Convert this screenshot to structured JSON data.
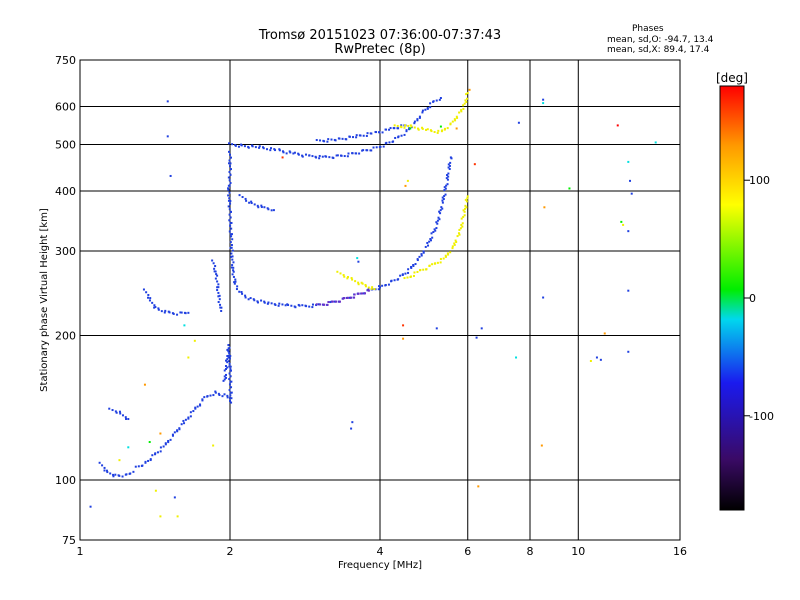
{
  "header": {
    "title_line1": "Tromsø 20151023 07:36:00-07:37:43",
    "title_line2": "RwPretec (8p)"
  },
  "stats": {
    "heading": "Phases",
    "o_line": "mean, sd,O: -94.7, 13.4",
    "x_line": "mean, sd,X: 89.4, 17.4"
  },
  "chart_data": {
    "type": "scatter",
    "xlabel": "Frequency [MHz]",
    "ylabel": "Stationary phase Virtual Height [km]",
    "x_scale": "log",
    "y_scale": "log",
    "xlim": [
      1,
      16
    ],
    "ylim": [
      75,
      750
    ],
    "x_ticks": [
      1,
      2,
      4,
      6,
      8,
      10,
      16
    ],
    "x_gridlines": [
      2,
      4,
      6,
      8,
      10
    ],
    "y_ticks": [
      75,
      100,
      200,
      300,
      400,
      500,
      600,
      750
    ],
    "y_gridlines": [
      100,
      200,
      300,
      400,
      500,
      600
    ],
    "grid": true,
    "colorbar": {
      "label": "[deg]",
      "range": [
        -180,
        180
      ],
      "ticks": [
        100,
        0,
        -100
      ],
      "stops": [
        "#000000",
        "#3a0a66",
        "#1a1aee",
        "#00d8ee",
        "#00ee00",
        "#ffff00",
        "#ff9900",
        "#ff0000"
      ]
    },
    "series": [
      {
        "shape": "trace",
        "color": "#2040e0",
        "points": [
          [
            2.0,
            500
          ],
          [
            2.1,
            497
          ],
          [
            2.3,
            493
          ],
          [
            2.5,
            486
          ],
          [
            2.7,
            478
          ],
          [
            2.9,
            472
          ],
          [
            3.1,
            470
          ],
          [
            3.3,
            472
          ],
          [
            3.5,
            477
          ],
          [
            3.7,
            484
          ],
          [
            3.9,
            490
          ],
          [
            4.1,
            500
          ],
          [
            4.3,
            513
          ],
          [
            4.5,
            530
          ],
          [
            4.7,
            555
          ],
          [
            4.9,
            585
          ],
          [
            5.1,
            610
          ],
          [
            5.3,
            625
          ]
        ]
      },
      {
        "shape": "trace",
        "color": "#2040e0",
        "points": [
          [
            3.0,
            508
          ],
          [
            3.3,
            512
          ],
          [
            3.6,
            520
          ],
          [
            3.9,
            528
          ],
          [
            4.2,
            538
          ],
          [
            4.5,
            548
          ]
        ]
      },
      {
        "shape": "trace",
        "color": "#2040e0",
        "points": [
          [
            2.0,
            480
          ],
          [
            2.0,
            430
          ],
          [
            1.99,
            400
          ],
          [
            2.0,
            360
          ],
          [
            2.01,
            320
          ],
          [
            2.02,
            290
          ],
          [
            2.03,
            270
          ],
          [
            2.05,
            255
          ],
          [
            2.1,
            245
          ],
          [
            2.2,
            238
          ],
          [
            2.4,
            233
          ],
          [
            2.6,
            231
          ],
          [
            2.8,
            230
          ],
          [
            3.0,
            231
          ],
          [
            3.2,
            234
          ],
          [
            3.4,
            238
          ],
          [
            3.6,
            243
          ],
          [
            3.8,
            248
          ],
          [
            4.0,
            252
          ]
        ]
      },
      {
        "shape": "trace",
        "color": "#6a30c8",
        "points": [
          [
            3.0,
            231
          ],
          [
            3.2,
            234
          ],
          [
            3.4,
            238
          ],
          [
            3.6,
            243
          ],
          [
            3.8,
            248
          ]
        ]
      },
      {
        "shape": "trace",
        "color": "#2040e0",
        "points": [
          [
            4.0,
            252
          ],
          [
            4.2,
            258
          ],
          [
            4.4,
            265
          ],
          [
            4.6,
            275
          ],
          [
            4.8,
            290
          ],
          [
            5.0,
            310
          ],
          [
            5.2,
            340
          ],
          [
            5.35,
            380
          ],
          [
            5.45,
            420
          ],
          [
            5.55,
            470
          ]
        ]
      },
      {
        "shape": "trace",
        "color": "#f0f000",
        "points": [
          [
            4.5,
            262
          ],
          [
            4.8,
            272
          ],
          [
            5.1,
            280
          ],
          [
            5.4,
            290
          ],
          [
            5.6,
            305
          ],
          [
            5.8,
            330
          ],
          [
            5.9,
            360
          ],
          [
            6.0,
            390
          ]
        ]
      },
      {
        "shape": "trace",
        "color": "#f0f000",
        "points": [
          [
            3.3,
            270
          ],
          [
            3.5,
            262
          ],
          [
            3.7,
            255
          ],
          [
            3.9,
            250
          ]
        ]
      },
      {
        "shape": "trace",
        "color": "#f0f000",
        "points": [
          [
            4.3,
            545
          ],
          [
            4.6,
            545
          ],
          [
            5.0,
            535
          ],
          [
            5.3,
            530
          ],
          [
            5.6,
            555
          ],
          [
            5.9,
            600
          ],
          [
            6.0,
            640
          ]
        ]
      },
      {
        "shape": "trace",
        "color": "#2040e0",
        "points": [
          [
            1.35,
            248
          ],
          [
            1.38,
            238
          ],
          [
            1.42,
            228
          ],
          [
            1.5,
            223
          ],
          [
            1.6,
            222
          ],
          [
            1.65,
            223
          ]
        ]
      },
      {
        "shape": "trace",
        "color": "#2040e0",
        "points": [
          [
            1.15,
            140
          ],
          [
            1.2,
            138
          ],
          [
            1.25,
            134
          ]
        ]
      },
      {
        "shape": "trace",
        "color": "#2040e0",
        "points": [
          [
            1.1,
            108
          ],
          [
            1.13,
            104
          ],
          [
            1.18,
            102
          ],
          [
            1.23,
            102
          ],
          [
            1.28,
            104
          ]
        ]
      },
      {
        "shape": "trace",
        "color": "#2040e0",
        "points": [
          [
            1.3,
            106
          ],
          [
            1.35,
            108
          ],
          [
            1.4,
            112
          ],
          [
            1.48,
            118
          ],
          [
            1.55,
            125
          ],
          [
            1.62,
            132
          ],
          [
            1.7,
            140
          ],
          [
            1.78,
            148
          ],
          [
            1.86,
            152
          ],
          [
            1.95,
            150
          ],
          [
            2.0,
            148
          ]
        ]
      },
      {
        "shape": "trace",
        "color": "#2040e0",
        "points": [
          [
            1.95,
            160
          ],
          [
            1.97,
            175
          ],
          [
            1.99,
            190
          ],
          [
            2.0,
            168
          ],
          [
            2.01,
            145
          ]
        ]
      },
      {
        "shape": "trace",
        "color": "#2040e0",
        "points": [
          [
            2.1,
            390
          ],
          [
            2.2,
            378
          ],
          [
            2.35,
            368
          ],
          [
            2.45,
            365
          ]
        ]
      },
      {
        "shape": "trace",
        "color": "#2040e0",
        "points": [
          [
            1.85,
            285
          ],
          [
            1.88,
            265
          ],
          [
            1.9,
            240
          ],
          [
            1.92,
            225
          ]
        ]
      },
      {
        "shape": "scatter",
        "points": [
          [
            1.5,
            615,
            "#2040e0"
          ],
          [
            1.5,
            520,
            "#2040e0"
          ],
          [
            1.52,
            430,
            "#2040e0"
          ],
          [
            1.05,
            88,
            "#2040e0"
          ],
          [
            1.2,
            110,
            "#f0f000"
          ],
          [
            1.25,
            117,
            "#00e0e0"
          ],
          [
            1.35,
            158,
            "#ff9900"
          ],
          [
            1.42,
            95,
            "#f0f000"
          ],
          [
            1.45,
            84,
            "#f0f000"
          ],
          [
            1.55,
            92,
            "#2040e0"
          ],
          [
            1.57,
            84,
            "#f0f000"
          ],
          [
            1.62,
            210,
            "#00e0e0"
          ],
          [
            1.65,
            180,
            "#f0f000"
          ],
          [
            1.7,
            195,
            "#f0f000"
          ],
          [
            1.38,
            120,
            "#00ee00"
          ],
          [
            1.45,
            125,
            "#ff9900"
          ],
          [
            1.85,
            118,
            "#f0f000"
          ],
          [
            3.5,
            128,
            "#2040e0"
          ],
          [
            3.52,
            132,
            "#2040e0"
          ],
          [
            3.6,
            290,
            "#00e0e0"
          ],
          [
            3.62,
            285,
            "#2040e0"
          ],
          [
            4.45,
            210,
            "#ff3300"
          ],
          [
            4.45,
            197,
            "#ff9900"
          ],
          [
            4.5,
            410,
            "#ff9900"
          ],
          [
            4.55,
            420,
            "#f0f000"
          ],
          [
            5.2,
            207,
            "#2040e0"
          ],
          [
            6.2,
            455,
            "#ff3300"
          ],
          [
            6.4,
            207,
            "#2040e0"
          ],
          [
            6.25,
            198,
            "#2040e0"
          ],
          [
            6.3,
            97,
            "#ff9900"
          ],
          [
            7.5,
            180,
            "#00e0e0"
          ],
          [
            7.6,
            555,
            "#2040e0"
          ],
          [
            8.5,
            620,
            "#2040e0"
          ],
          [
            8.5,
            610,
            "#00e0e0"
          ],
          [
            8.55,
            370,
            "#ff9900"
          ],
          [
            8.5,
            240,
            "#2040e0"
          ],
          [
            8.45,
            118,
            "#ff9900"
          ],
          [
            9.6,
            405,
            "#00ee00"
          ],
          [
            10.6,
            177,
            "#f0f000"
          ],
          [
            10.9,
            180,
            "#2040e0"
          ],
          [
            11.1,
            178,
            "#2040e0"
          ],
          [
            11.3,
            202,
            "#ff9900"
          ],
          [
            12.0,
            548,
            "#ff0000"
          ],
          [
            12.2,
            345,
            "#00ee00"
          ],
          [
            12.3,
            340,
            "#f0f000"
          ],
          [
            12.6,
            460,
            "#00e0e0"
          ],
          [
            12.7,
            420,
            "#2040e0"
          ],
          [
            12.8,
            395,
            "#2040e0"
          ],
          [
            12.6,
            330,
            "#2040e0"
          ],
          [
            12.6,
            248,
            "#2040e0"
          ],
          [
            12.6,
            185,
            "#2040e0"
          ],
          [
            14.3,
            505,
            "#00e0e0"
          ],
          [
            5.3,
            545,
            "#00ee00"
          ],
          [
            4.6,
            540,
            "#00ee00"
          ],
          [
            2.55,
            470,
            "#ff3300"
          ],
          [
            5.7,
            540,
            "#ff9900"
          ],
          [
            6.05,
            650,
            "#ff9900"
          ]
        ]
      }
    ]
  }
}
